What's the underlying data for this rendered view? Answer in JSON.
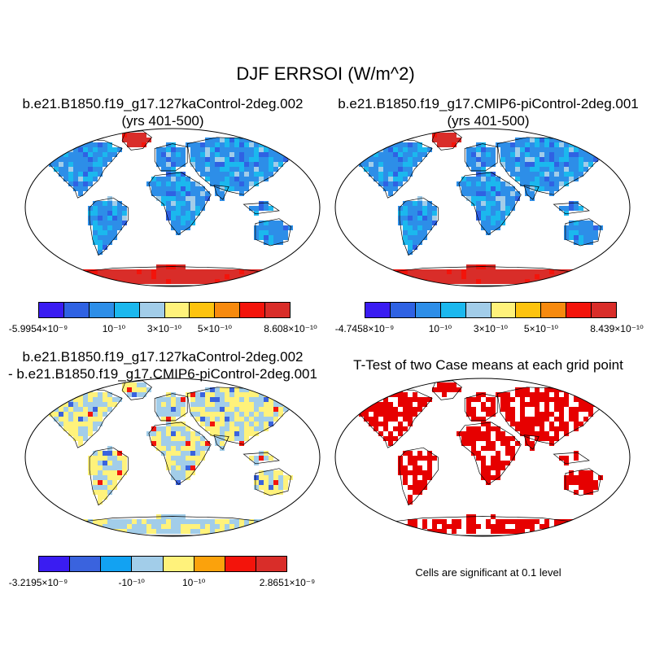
{
  "figure": {
    "title": "DJF ERRSOI (W/m^2)"
  },
  "panels": {
    "case1": {
      "title_line1": "b.e21.B1850.f19_g17.127kaControl-2deg.002",
      "title_line2": "(yrs 401-500)",
      "colorbar": {
        "colors": [
          "#3a1cf2",
          "#2f62e3",
          "#2d8ee8",
          "#1bb8ee",
          "#a2cde9",
          "#fff27b",
          "#fdc30e",
          "#f78a0e",
          "#f3140b",
          "#d92d29"
        ],
        "labels": [
          "-5.9954×10⁻⁹",
          "10⁻¹⁰",
          "3×10⁻¹⁰",
          "5×10⁻¹⁰",
          "8.608×10⁻¹⁰"
        ]
      }
    },
    "case2": {
      "title_line1": "b.e21.B1850.f19_g17.CMIP6-piControl-2deg.001",
      "title_line2": "(yrs 401-500)",
      "colorbar": {
        "colors": [
          "#3a1cf2",
          "#2f62e3",
          "#2d8ee8",
          "#1bb8ee",
          "#a2cde9",
          "#fff27b",
          "#fdc30e",
          "#f78a0e",
          "#f3140b",
          "#d92d29"
        ],
        "labels": [
          "-4.7458×10⁻⁹",
          "10⁻¹⁰",
          "3×10⁻¹⁰",
          "5×10⁻¹⁰",
          "8.439×10⁻¹⁰"
        ]
      }
    },
    "difference": {
      "title_line1": "b.e21.B1850.f19_g17.127kaControl-2deg.002",
      "title_line2": "- b.e21.B1850.f19_g17.CMIP6-piControl-2deg.001",
      "colorbar": {
        "colors": [
          "#3a1cf2",
          "#3a63de",
          "#12a2f2",
          "#a2cde9",
          "#fff27b",
          "#fba20c",
          "#f3140b",
          "#d92d29"
        ],
        "labels": [
          "-3.2195×10⁻⁹",
          "-10⁻¹⁰",
          "10⁻¹⁰",
          "2.8651×10⁻⁹"
        ]
      }
    },
    "ttest": {
      "title": "T-Test of two Case means at each grid point",
      "note": "Cells are significant at 0.1 level",
      "color": "#e60000"
    }
  }
}
